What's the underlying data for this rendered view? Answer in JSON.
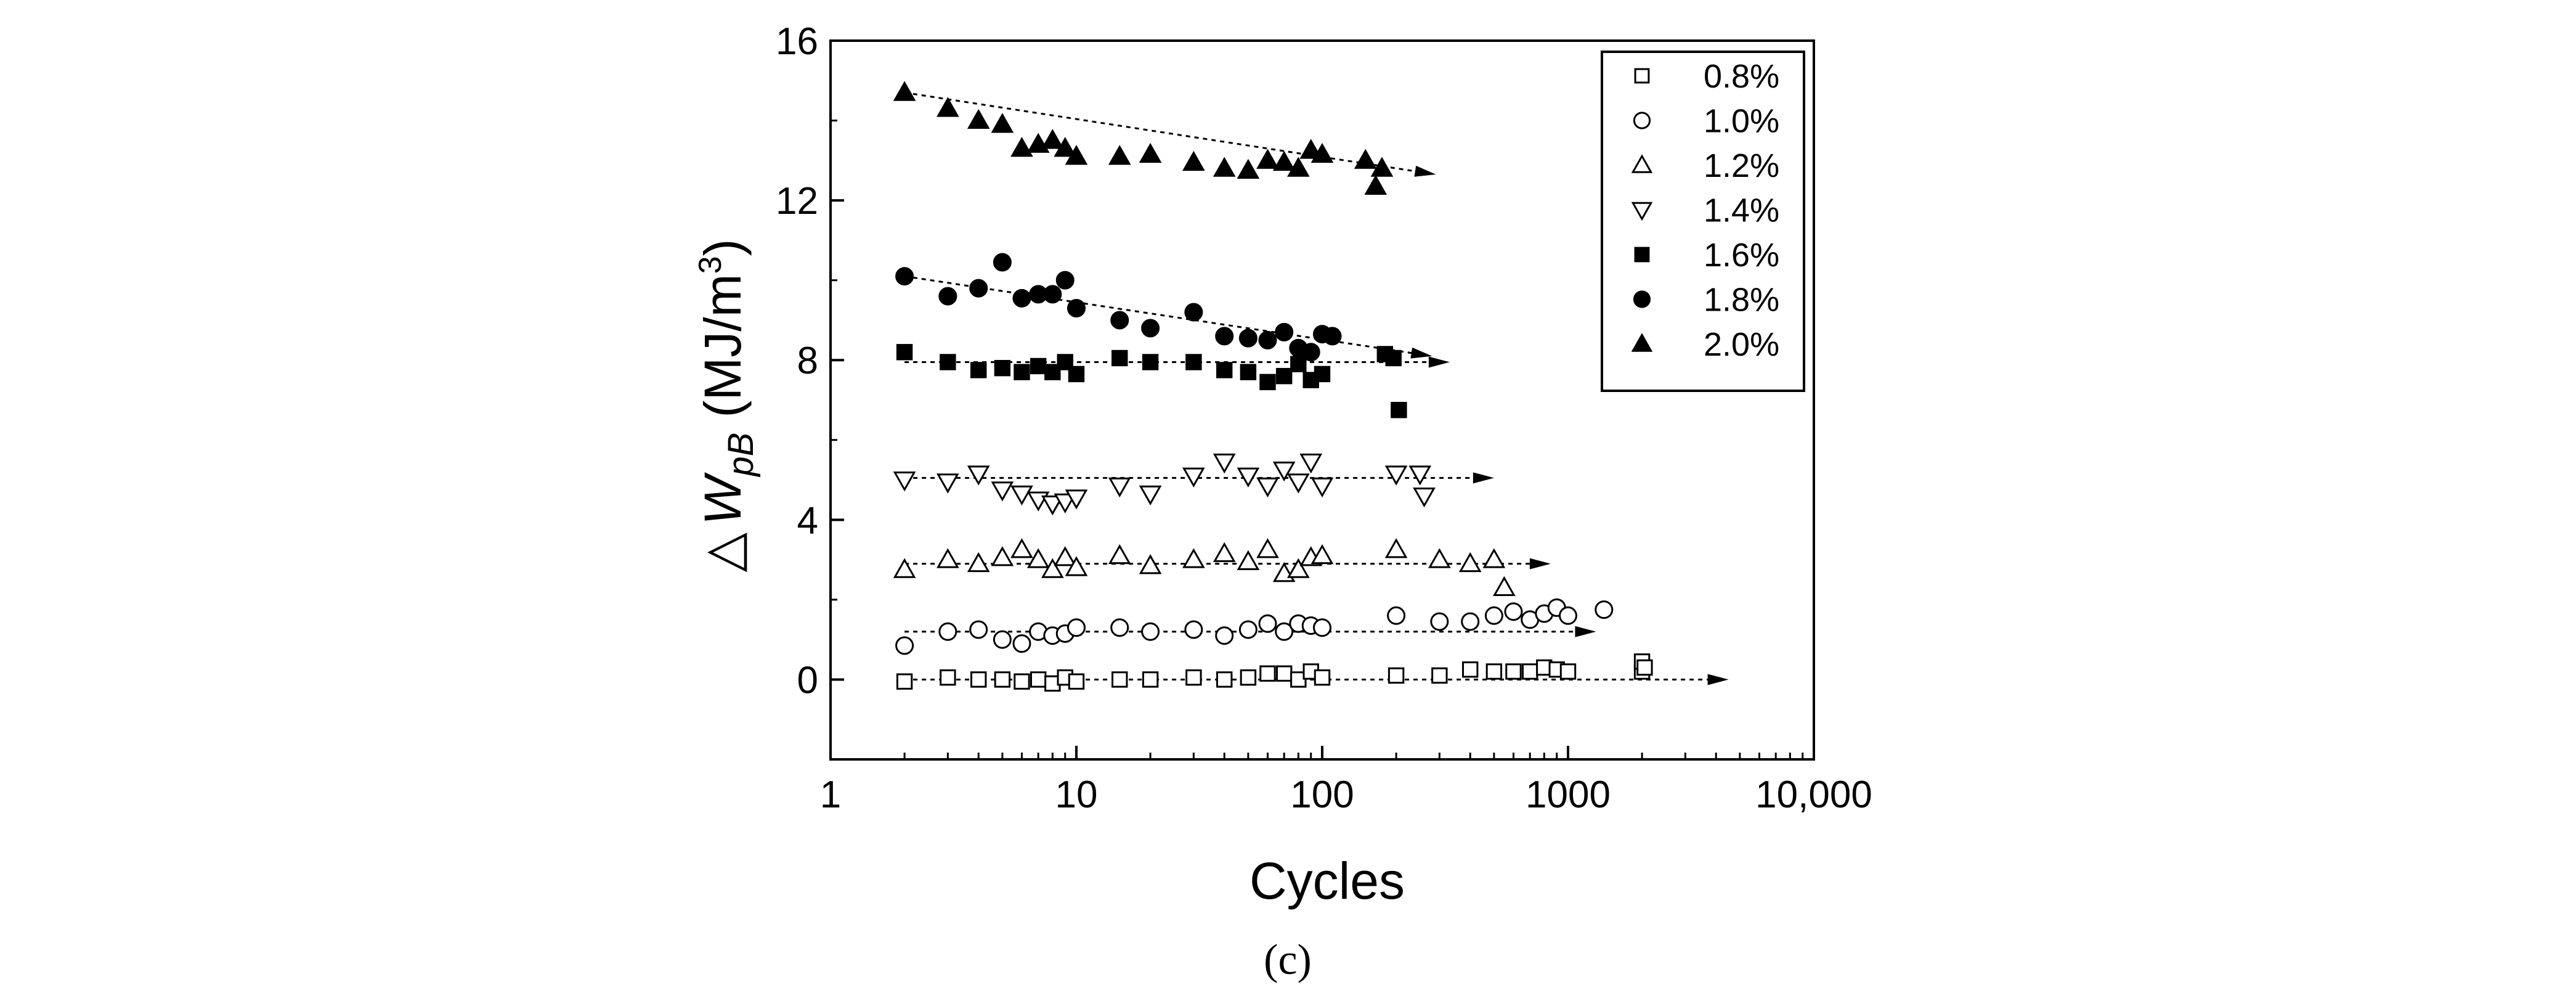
{
  "chart_data": {
    "type": "scatter",
    "title": "",
    "xlabel": "Cycles",
    "ylabel": {
      "symbol": "△",
      "main": "W",
      "subscript": "pB",
      "unit_open": "(MJ/m",
      "unit_sup": "3",
      "unit_close": ")"
    },
    "x_scale": "log",
    "xlim": [
      1,
      10000
    ],
    "ylim": [
      -2,
      16
    ],
    "x_ticks": [
      {
        "value": 1,
        "label": "1"
      },
      {
        "value": 10,
        "label": "10"
      },
      {
        "value": 100,
        "label": "100"
      },
      {
        "value": 1000,
        "label": "1000"
      },
      {
        "value": 10000,
        "label": "10,000"
      }
    ],
    "y_ticks": [
      {
        "value": 0,
        "label": "0"
      },
      {
        "value": 4,
        "label": "4"
      },
      {
        "value": 8,
        "label": "8"
      },
      {
        "value": 12,
        "label": "12"
      },
      {
        "value": 16,
        "label": "16"
      }
    ],
    "legend_position": "top-right",
    "caption": "(c)",
    "series": [
      {
        "name": "0.8%",
        "marker": "square",
        "filled": false,
        "trend": {
          "x": [
            2,
            4500
          ],
          "y": [
            0,
            0
          ]
        },
        "points": [
          [
            2,
            -0.05
          ],
          [
            3,
            0.05
          ],
          [
            4,
            0
          ],
          [
            5,
            0
          ],
          [
            6,
            -0.05
          ],
          [
            7,
            0
          ],
          [
            8,
            -0.1
          ],
          [
            9,
            0.05
          ],
          [
            10,
            -0.05
          ],
          [
            15,
            0
          ],
          [
            20,
            0
          ],
          [
            30,
            0.05
          ],
          [
            40,
            0
          ],
          [
            50,
            0.05
          ],
          [
            60,
            0.15
          ],
          [
            70,
            0.15
          ],
          [
            80,
            0
          ],
          [
            90,
            0.2
          ],
          [
            100,
            0.05
          ],
          [
            200,
            0.1
          ],
          [
            300,
            0.1
          ],
          [
            400,
            0.25
          ],
          [
            500,
            0.2
          ],
          [
            600,
            0.2
          ],
          [
            700,
            0.2
          ],
          [
            800,
            0.3
          ],
          [
            900,
            0.25
          ],
          [
            1000,
            0.2
          ],
          [
            2000,
            0.2
          ],
          [
            2000,
            0.45
          ],
          [
            2050,
            0.3
          ]
        ]
      },
      {
        "name": "1.0%",
        "marker": "circle",
        "filled": false,
        "trend": {
          "x": [
            2,
            1300
          ],
          "y": [
            1.2,
            1.2
          ]
        },
        "points": [
          [
            2,
            0.85
          ],
          [
            3,
            1.2
          ],
          [
            4,
            1.25
          ],
          [
            5,
            1.0
          ],
          [
            6,
            0.9
          ],
          [
            7,
            1.2
          ],
          [
            8,
            1.1
          ],
          [
            9,
            1.15
          ],
          [
            10,
            1.3
          ],
          [
            15,
            1.3
          ],
          [
            20,
            1.2
          ],
          [
            30,
            1.25
          ],
          [
            40,
            1.1
          ],
          [
            50,
            1.25
          ],
          [
            60,
            1.4
          ],
          [
            70,
            1.2
          ],
          [
            80,
            1.4
          ],
          [
            90,
            1.35
          ],
          [
            100,
            1.3
          ],
          [
            200,
            1.6
          ],
          [
            300,
            1.45
          ],
          [
            400,
            1.45
          ],
          [
            500,
            1.6
          ],
          [
            600,
            1.7
          ],
          [
            700,
            1.5
          ],
          [
            800,
            1.65
          ],
          [
            900,
            1.8
          ],
          [
            1000,
            1.6
          ],
          [
            1400,
            1.75
          ]
        ]
      },
      {
        "name": "1.2%",
        "marker": "triangle-up",
        "filled": false,
        "trend": {
          "x": [
            2,
            850
          ],
          "y": [
            2.9,
            2.9
          ]
        },
        "points": [
          [
            2,
            2.75
          ],
          [
            3,
            3.0
          ],
          [
            4,
            2.9
          ],
          [
            5,
            3.05
          ],
          [
            6,
            3.25
          ],
          [
            7,
            3.0
          ],
          [
            8,
            2.75
          ],
          [
            9,
            3.05
          ],
          [
            10,
            2.8
          ],
          [
            15,
            3.1
          ],
          [
            20,
            2.85
          ],
          [
            30,
            3.0
          ],
          [
            40,
            3.15
          ],
          [
            50,
            2.95
          ],
          [
            60,
            3.25
          ],
          [
            70,
            2.65
          ],
          [
            80,
            2.75
          ],
          [
            90,
            3.05
          ],
          [
            100,
            3.1
          ],
          [
            200,
            3.25
          ],
          [
            300,
            3.0
          ],
          [
            400,
            2.9
          ],
          [
            500,
            3.0
          ],
          [
            550,
            2.3
          ]
        ]
      },
      {
        "name": "1.4%",
        "marker": "triangle-down",
        "filled": false,
        "trend": {
          "x": [
            2,
            500
          ],
          "y": [
            5.05,
            5.05
          ]
        },
        "points": [
          [
            2,
            5.0
          ],
          [
            3,
            4.95
          ],
          [
            4,
            5.15
          ],
          [
            5,
            4.75
          ],
          [
            6,
            4.65
          ],
          [
            7,
            4.5
          ],
          [
            8,
            4.4
          ],
          [
            9,
            4.45
          ],
          [
            10,
            4.55
          ],
          [
            15,
            4.85
          ],
          [
            20,
            4.65
          ],
          [
            30,
            5.1
          ],
          [
            40,
            5.45
          ],
          [
            50,
            5.1
          ],
          [
            60,
            4.85
          ],
          [
            70,
            5.25
          ],
          [
            80,
            4.95
          ],
          [
            90,
            5.45
          ],
          [
            100,
            4.85
          ],
          [
            200,
            5.15
          ],
          [
            250,
            5.15
          ],
          [
            260,
            4.6
          ]
        ]
      },
      {
        "name": "1.6%",
        "marker": "square",
        "filled": true,
        "trend": {
          "x": [
            2,
            330
          ],
          "y": [
            7.95,
            7.95
          ]
        },
        "points": [
          [
            2,
            8.2
          ],
          [
            3,
            7.95
          ],
          [
            4,
            7.75
          ],
          [
            5,
            7.8
          ],
          [
            6,
            7.7
          ],
          [
            7,
            7.85
          ],
          [
            8,
            7.7
          ],
          [
            9,
            7.95
          ],
          [
            10,
            7.65
          ],
          [
            15,
            8.05
          ],
          [
            20,
            7.95
          ],
          [
            30,
            7.95
          ],
          [
            40,
            7.75
          ],
          [
            50,
            7.7
          ],
          [
            60,
            7.45
          ],
          [
            70,
            7.6
          ],
          [
            80,
            7.9
          ],
          [
            90,
            7.5
          ],
          [
            100,
            7.65
          ],
          [
            180,
            8.15
          ],
          [
            195,
            8.05
          ],
          [
            205,
            6.75
          ]
        ]
      },
      {
        "name": "1.8%",
        "marker": "circle",
        "filled": true,
        "trend": {
          "x": [
            2,
            280
          ],
          "y": [
            10.1,
            8.1
          ]
        },
        "points": [
          [
            2,
            10.1
          ],
          [
            3,
            9.6
          ],
          [
            4,
            9.8
          ],
          [
            5,
            10.45
          ],
          [
            6,
            9.55
          ],
          [
            7,
            9.65
          ],
          [
            8,
            9.65
          ],
          [
            9,
            10.0
          ],
          [
            10,
            9.3
          ],
          [
            15,
            9.0
          ],
          [
            20,
            8.8
          ],
          [
            30,
            9.2
          ],
          [
            40,
            8.6
          ],
          [
            50,
            8.55
          ],
          [
            60,
            8.5
          ],
          [
            70,
            8.7
          ],
          [
            80,
            8.3
          ],
          [
            90,
            8.2
          ],
          [
            100,
            8.65
          ],
          [
            110,
            8.6
          ]
        ]
      },
      {
        "name": "2.0%",
        "marker": "triangle-up",
        "filled": true,
        "trend": {
          "x": [
            2,
            290
          ],
          "y": [
            14.7,
            12.65
          ]
        },
        "points": [
          [
            2,
            14.7
          ],
          [
            3,
            14.3
          ],
          [
            4,
            14.0
          ],
          [
            5,
            13.9
          ],
          [
            6,
            13.3
          ],
          [
            7,
            13.4
          ],
          [
            8,
            13.5
          ],
          [
            9,
            13.3
          ],
          [
            10,
            13.1
          ],
          [
            15,
            13.1
          ],
          [
            20,
            13.15
          ],
          [
            30,
            12.95
          ],
          [
            40,
            12.8
          ],
          [
            50,
            12.75
          ],
          [
            60,
            13.0
          ],
          [
            70,
            12.95
          ],
          [
            80,
            12.8
          ],
          [
            90,
            13.25
          ],
          [
            100,
            13.15
          ],
          [
            150,
            13.0
          ],
          [
            165,
            12.35
          ],
          [
            175,
            12.8
          ]
        ]
      }
    ]
  }
}
